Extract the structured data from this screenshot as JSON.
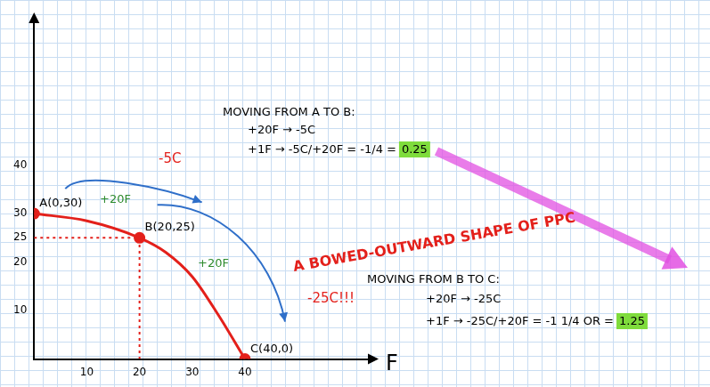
{
  "chart_data": {
    "type": "line",
    "x_label": "F",
    "x": [
      0,
      10,
      20,
      25,
      30,
      35,
      40
    ],
    "values": [
      30,
      28.5,
      25,
      22,
      17,
      9,
      0
    ],
    "point_labels": [
      "A(0,30)",
      null,
      "B(20,25)",
      null,
      null,
      null,
      "C(40,0)"
    ],
    "color": "#e3201b",
    "marker": "circle",
    "line_style": "solid",
    "xlim": [
      0,
      64
    ],
    "ylim": [
      0,
      70
    ],
    "xticks": [
      10,
      20,
      30,
      40
    ],
    "yticks": [
      10,
      20,
      25,
      30,
      40
    ],
    "grid": false,
    "annotations": [
      {
        "text": "MOVING FROM A TO B:",
        "color": "#000000"
      },
      {
        "text": "+20F → -5C",
        "color": "#000000"
      },
      {
        "text": "+1F → -5C/+20F = -1/4 =",
        "color": "#000000"
      },
      {
        "text": "0.25",
        "color": "#000000"
      },
      {
        "text": "A BOWED-OUTWARD SHAPE OF PPC",
        "color": "#e3201b"
      },
      {
        "text": "MOVING FROM B TO C:",
        "color": "#000000"
      },
      {
        "text": "+20F → -25C",
        "color": "#000000"
      },
      {
        "text": "+1F → -25C/+20F = -1 1/4 OR =",
        "color": "#000000"
      },
      {
        "text": "1.25",
        "color": "#000000"
      },
      {
        "text": "-5C",
        "color": "#e3201b"
      },
      {
        "text": "+20F",
        "color": "#2e8b2e"
      },
      {
        "text": "+20F",
        "color": "#2e8b2e"
      },
      {
        "text": "-25C!!!",
        "color": "#e3201b"
      }
    ]
  }
}
